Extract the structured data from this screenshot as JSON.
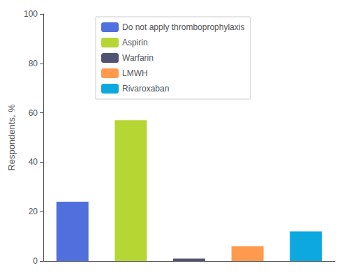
{
  "chart_data": {
    "type": "bar",
    "categories": [
      "Do not apply thromboprophylaxis",
      "Aspirin",
      "Warfarin",
      "LMWH",
      "Rivaroxaban"
    ],
    "values": [
      24,
      57,
      1,
      6,
      12
    ],
    "ylabel": "Respondents, %",
    "ylim": [
      0,
      100
    ],
    "yticks": [
      0,
      20,
      40,
      60,
      80,
      100
    ],
    "grid": false,
    "legend": "upper left",
    "tick_labels": "y"
  }
}
